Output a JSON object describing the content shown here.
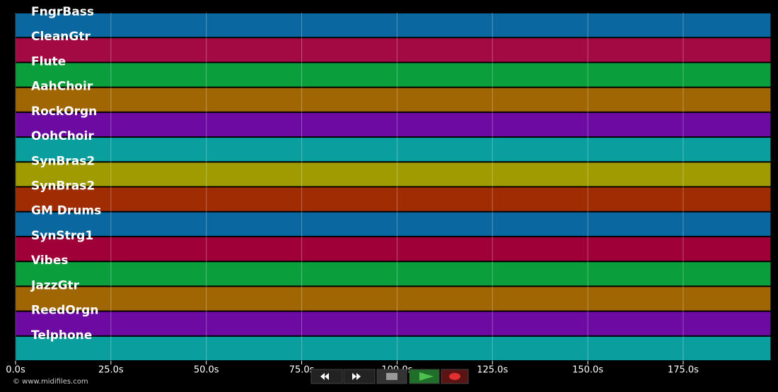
{
  "tracks": [
    {
      "name": "FngrBass",
      "color": "#0b67a0"
    },
    {
      "name": "CleanGtr",
      "color": "#a30a44"
    },
    {
      "name": "Flute",
      "color": "#0b9e3c"
    },
    {
      "name": "AahChoir",
      "color": "#a06604"
    },
    {
      "name": "RockOrgn",
      "color": "#6c0aa2"
    },
    {
      "name": "OohChoir",
      "color": "#0a9e9e"
    },
    {
      "name": "SynBras2",
      "color": "#a09c00"
    },
    {
      "name": "SynBras2",
      "color": "#a02c04"
    },
    {
      "name": "GM Drums",
      "color": "#0b67a0"
    },
    {
      "name": "SynStrg1",
      "color": "#a00038"
    },
    {
      "name": "Vibes",
      "color": "#0b9e3c"
    },
    {
      "name": "JazzGtr",
      "color": "#a06604"
    },
    {
      "name": "ReedOrgn",
      "color": "#6c0aa2"
    },
    {
      "name": "Telphone",
      "color": "#0a9e9e"
    }
  ],
  "time_axis": {
    "xlim": [
      0,
      198
    ],
    "ticks": [
      {
        "value": 0,
        "label": "0.0s"
      },
      {
        "value": 25,
        "label": "25.0s"
      },
      {
        "value": 50,
        "label": "50.0s"
      },
      {
        "value": 75,
        "label": "75.0s"
      },
      {
        "value": 100,
        "label": "100.0s"
      },
      {
        "value": 125,
        "label": "125.0s"
      },
      {
        "value": 150,
        "label": "150.0s"
      },
      {
        "value": 175,
        "label": "175.0s"
      }
    ]
  },
  "footer": {
    "copyright": "© www.midifiles.com"
  }
}
